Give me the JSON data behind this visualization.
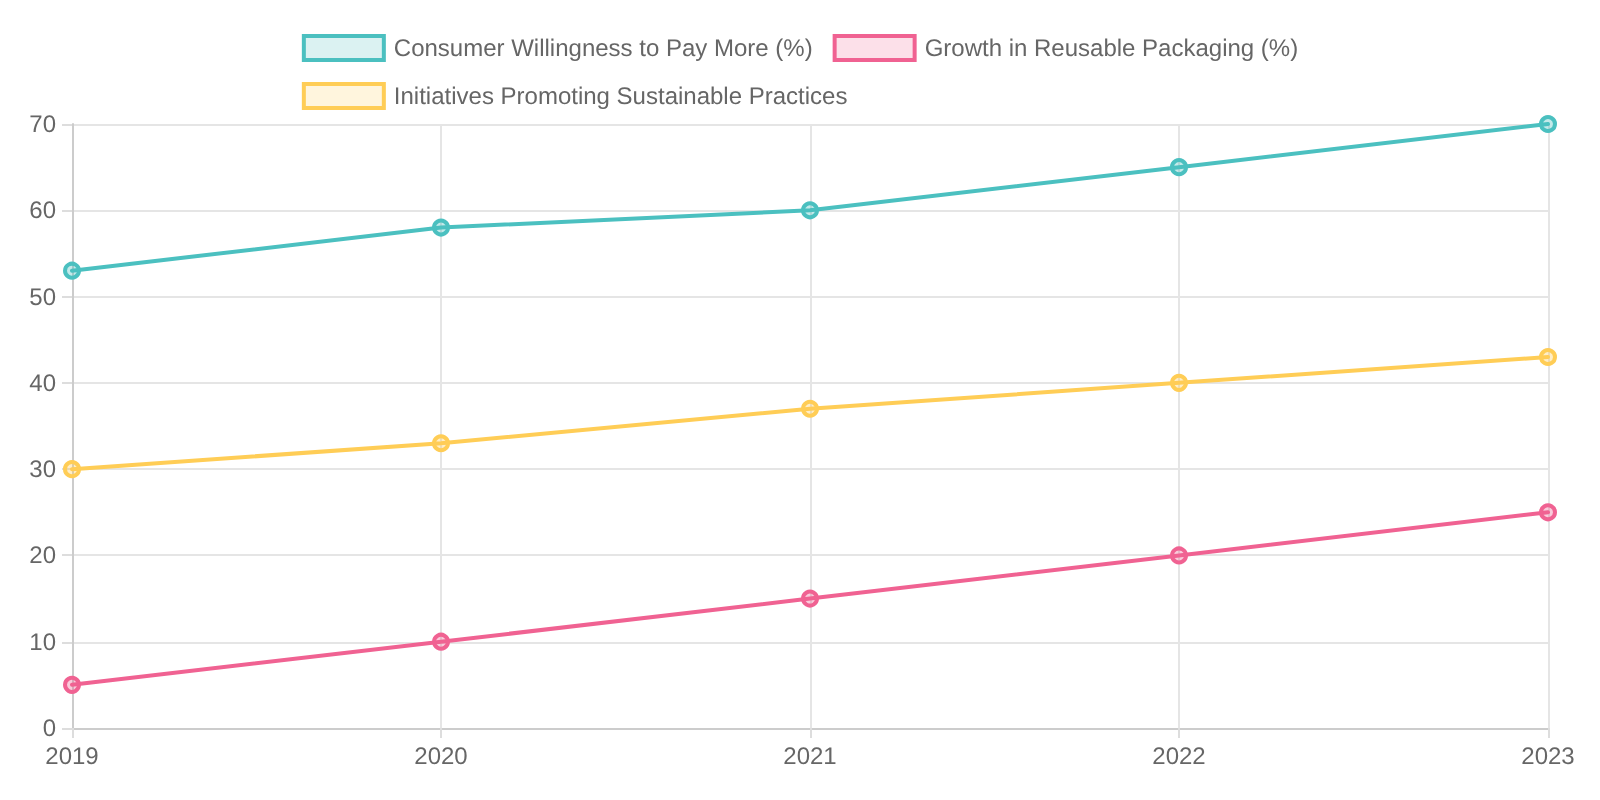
{
  "chart_data": {
    "type": "line",
    "categories": [
      "2019",
      "2020",
      "2021",
      "2022",
      "2023"
    ],
    "series": [
      {
        "name": "Consumer Willingness to Pay More (%)",
        "color": "#4bc0c0",
        "values": [
          53,
          58,
          60,
          65,
          70
        ]
      },
      {
        "name": "Growth in Reusable Packaging (%)",
        "color": "#f06292",
        "values": [
          5,
          10,
          15,
          20,
          25
        ]
      },
      {
        "name": "Initiatives Promoting Sustainable Practices",
        "color": "#ffcd56",
        "values": [
          30,
          33,
          37,
          40,
          43
        ]
      }
    ],
    "ylim": [
      0,
      70
    ],
    "yticks": [
      0,
      10,
      20,
      30,
      40,
      50,
      60,
      70
    ],
    "grid": true,
    "legend": "top",
    "marker": "circle",
    "line_style": "solid"
  }
}
